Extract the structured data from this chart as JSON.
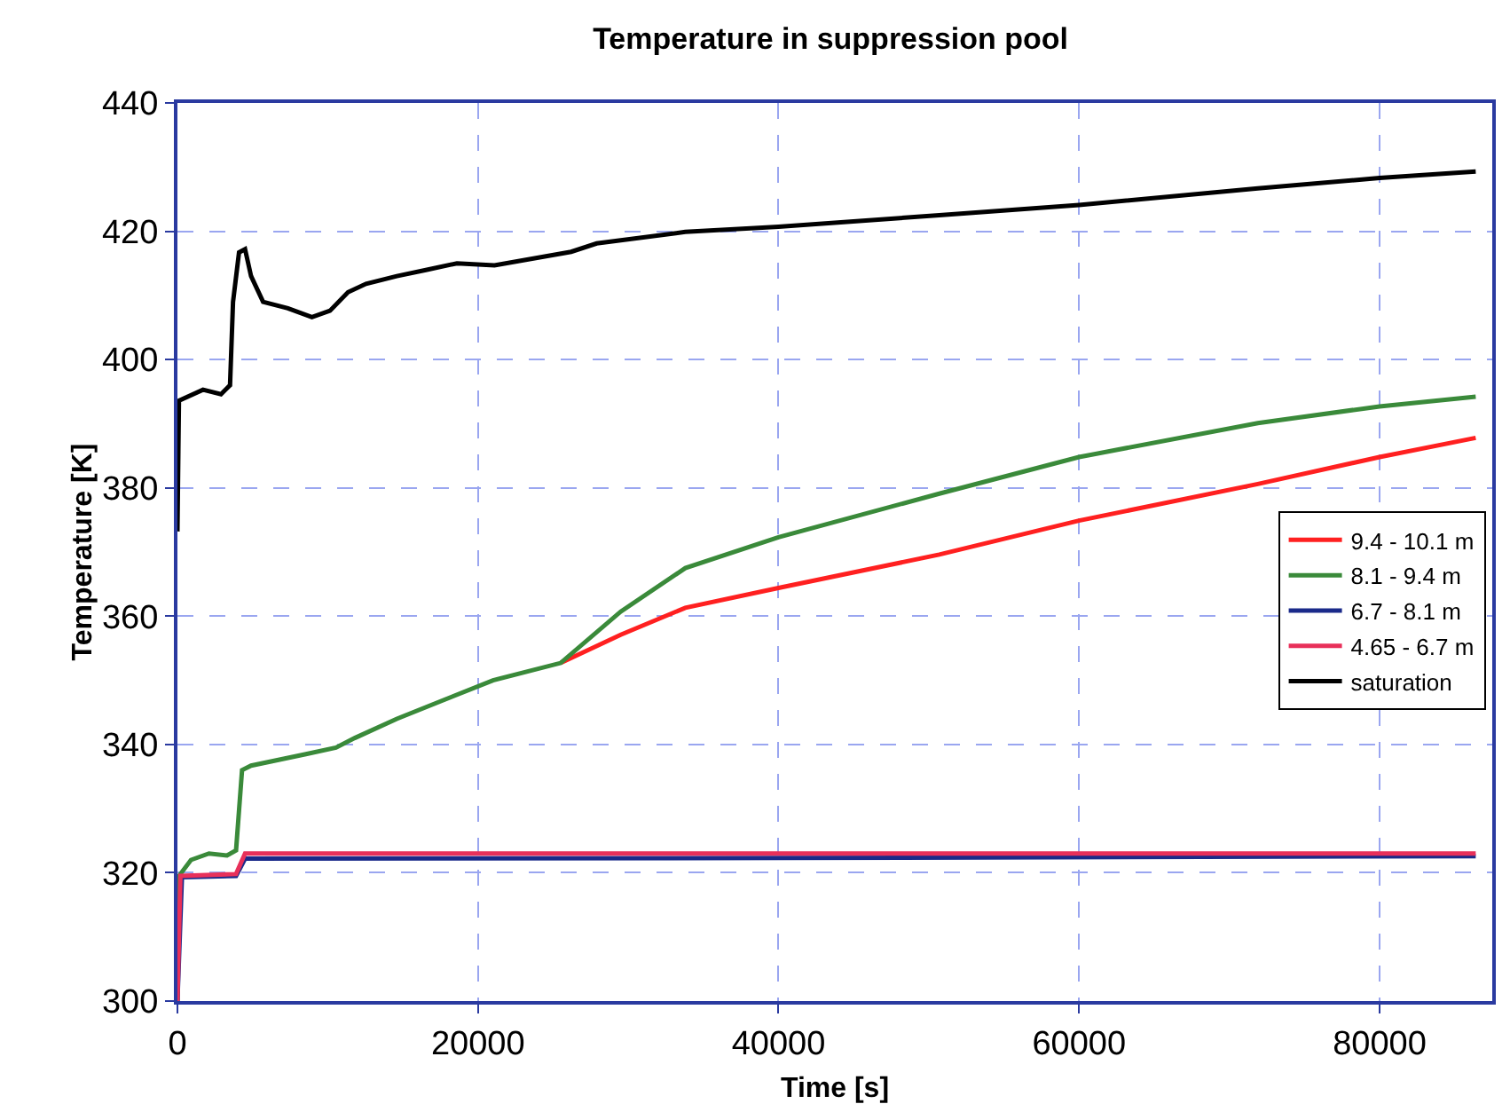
{
  "chart_data": {
    "type": "line",
    "title": "Temperature in suppression pool",
    "xlabel": "Time [s]",
    "ylabel": "Temperature [K]",
    "xlim": [
      0,
      87500
    ],
    "xticks": [
      0,
      20000,
      40000,
      60000,
      80000
    ],
    "ylim": [
      300,
      440
    ],
    "yticks": [
      300,
      320,
      340,
      360,
      380,
      400,
      420,
      440
    ],
    "grid": true,
    "legend": "right",
    "line_style": "solid",
    "marker": "none",
    "series": [
      {
        "name": "9.4 - 10.1 m",
        "color": "#ff2020",
        "x": [
          25500,
          29500,
          33800,
          40000,
          50700,
          60000,
          71900,
          80000,
          86400
        ],
        "values": [
          352.7,
          357.1,
          361.3,
          364.4,
          369.6,
          374.9,
          380.6,
          384.8,
          387.8
        ]
      },
      {
        "name": "8.1 - 9.4 m",
        "color": "#3a8a3a",
        "x": [
          0,
          100,
          900,
          2100,
          3300,
          3900,
          4300,
          4900,
          8550,
          10550,
          11800,
          14600,
          17800,
          21000,
          25500,
          29500,
          33800,
          40000,
          50700,
          60000,
          71900,
          80000,
          86400
        ],
        "values": [
          300,
          319.5,
          322,
          323,
          322.7,
          323.5,
          336,
          336.7,
          338.5,
          339.5,
          341,
          344,
          347,
          350,
          352.7,
          360.7,
          367.5,
          372.3,
          379.1,
          384.8,
          390.1,
          392.7,
          394.2
        ]
      },
      {
        "name": "6.7 - 8.1 m",
        "color": "#1a2a8a",
        "x": [
          0,
          300,
          3900,
          4500,
          40000,
          86400
        ],
        "values": [
          300,
          319.3,
          319.5,
          322.2,
          322.3,
          322.6
        ]
      },
      {
        "name": "4.65 - 6.7 m",
        "color": "#e8305a",
        "x": [
          0,
          200,
          3900,
          4500,
          40000,
          86400
        ],
        "values": [
          300,
          319.5,
          319.8,
          323,
          323,
          323
        ]
      },
      {
        "name": "saturation",
        "color": "#000000",
        "x": [
          0,
          100,
          1700,
          2900,
          3500,
          3700,
          4100,
          4500,
          4900,
          5700,
          7350,
          8950,
          10150,
          11350,
          12550,
          14600,
          16600,
          18600,
          21100,
          26200,
          27900,
          33800,
          40000,
          50700,
          60000,
          71900,
          80000,
          86400
        ],
        "values": [
          373.2,
          393.6,
          395.3,
          394.6,
          396,
          409,
          416.7,
          417.2,
          413,
          409,
          408,
          406.6,
          407.6,
          410.5,
          411.8,
          413,
          414,
          415,
          414.7,
          416.8,
          418.1,
          419.9,
          420.7,
          422.5,
          424.1,
          426.7,
          428.3,
          429.3
        ]
      }
    ]
  }
}
